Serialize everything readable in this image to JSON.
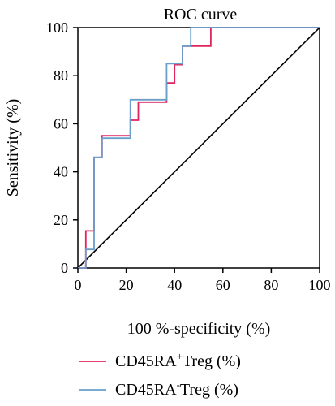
{
  "chart_data": {
    "type": "line",
    "title": "ROC curve",
    "xlabel": "100 %-specificity (%)",
    "ylabel": "Sensitivity (%)",
    "xlim": [
      0,
      100
    ],
    "ylim": [
      0,
      100
    ],
    "xticks": [
      "0",
      "20",
      "40",
      "60",
      "80",
      "100"
    ],
    "yticks": [
      "0",
      "20",
      "40",
      "60",
      "80",
      "100"
    ],
    "grid": false,
    "legend_position": "bottom",
    "series": [
      {
        "name_parts": [
          "CD45RA",
          "+",
          "Treg (%)"
        ],
        "color": "#e0245e",
        "points": [
          [
            0,
            0
          ],
          [
            3.3,
            0
          ],
          [
            3.3,
            15.4
          ],
          [
            6.7,
            15.4
          ],
          [
            6.7,
            46
          ],
          [
            10,
            46
          ],
          [
            10,
            55
          ],
          [
            21.7,
            55
          ],
          [
            21.7,
            61.5
          ],
          [
            25,
            61.5
          ],
          [
            25,
            69
          ],
          [
            36.7,
            69
          ],
          [
            36.7,
            77
          ],
          [
            40,
            77
          ],
          [
            40,
            84.6
          ],
          [
            43.3,
            84.6
          ],
          [
            43.3,
            92.3
          ],
          [
            55,
            92.3
          ],
          [
            55,
            100
          ],
          [
            100,
            100
          ]
        ]
      },
      {
        "name_parts": [
          "CD45RA",
          "-",
          "Treg (%)"
        ],
        "color": "#6a9fcb",
        "points": [
          [
            0,
            0
          ],
          [
            3.3,
            0
          ],
          [
            3.3,
            7.7
          ],
          [
            6.7,
            7.7
          ],
          [
            6.7,
            46
          ],
          [
            10,
            46
          ],
          [
            10,
            54
          ],
          [
            21.7,
            54
          ],
          [
            21.7,
            70
          ],
          [
            36.7,
            70
          ],
          [
            36.7,
            85
          ],
          [
            43.3,
            85
          ],
          [
            43.3,
            92.3
          ],
          [
            46.7,
            92.3
          ],
          [
            46.7,
            100
          ],
          [
            100,
            100
          ]
        ]
      },
      {
        "name": "",
        "color": "#000000",
        "reference": true,
        "points": [
          [
            0,
            0
          ],
          [
            100,
            100
          ]
        ]
      }
    ]
  }
}
